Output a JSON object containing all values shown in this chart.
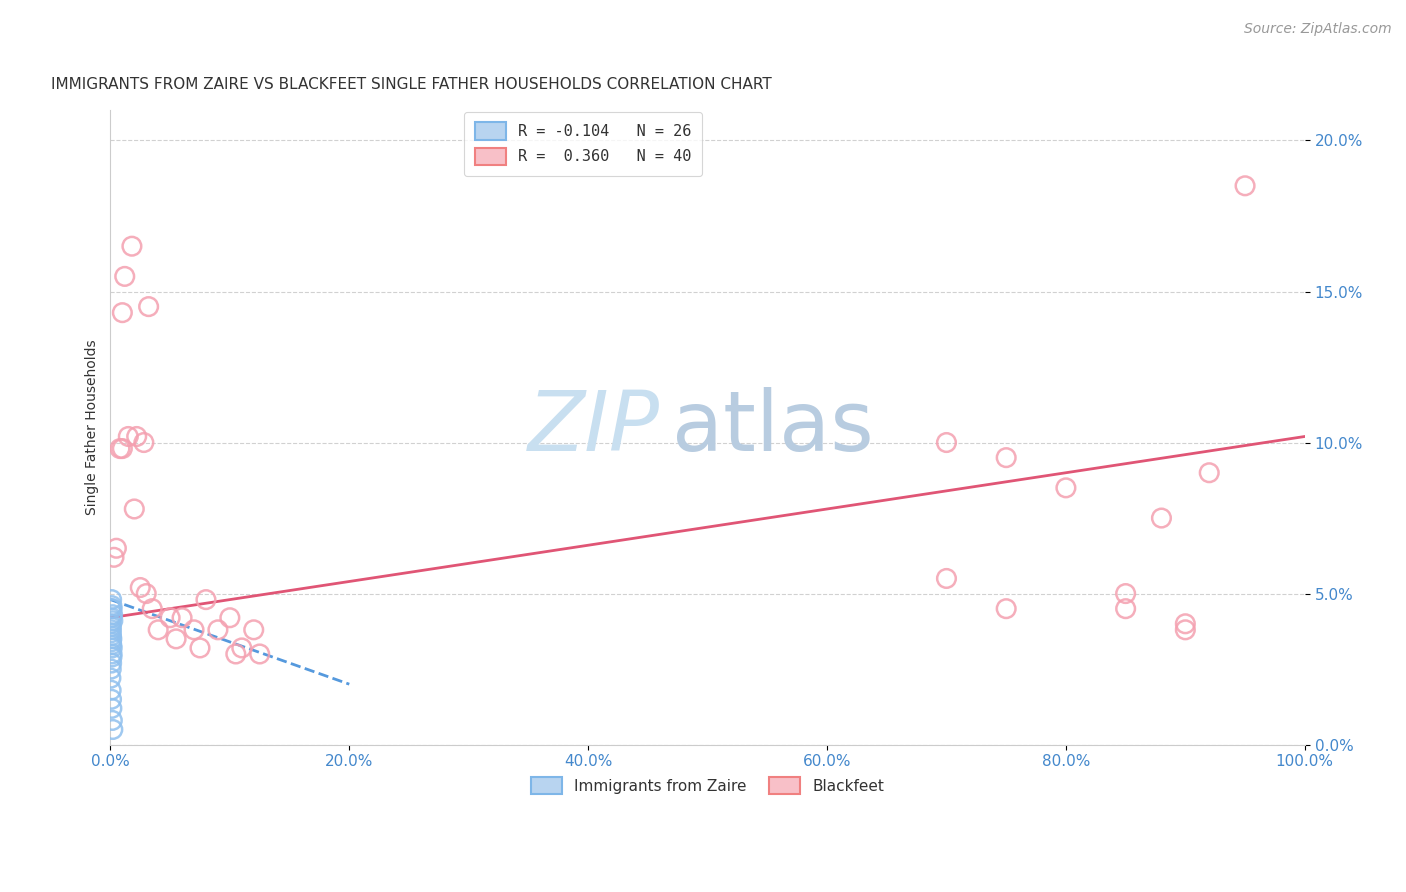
{
  "title": "IMMIGRANTS FROM ZAIRE VS BLACKFEET SINGLE FATHER HOUSEHOLDS CORRELATION CHART",
  "source": "Source: ZipAtlas.com",
  "xlabel": "",
  "ylabel": "Single Father Households",
  "watermark_zip": "ZIP",
  "watermark_atlas": "atlas",
  "xlim": [
    0.0,
    100.0
  ],
  "ylim": [
    0.0,
    21.0
  ],
  "xticks": [
    0.0,
    20.0,
    40.0,
    60.0,
    80.0,
    100.0
  ],
  "yticks": [
    0.0,
    5.0,
    10.0,
    15.0,
    20.0
  ],
  "legend": [
    {
      "label": "R = -0.104   N = 26",
      "color": "#7eb6e8"
    },
    {
      "label": "R =  0.360   N = 40",
      "color": "#f08080"
    }
  ],
  "blue_points": [
    [
      0.05,
      4.5
    ],
    [
      0.1,
      4.8
    ],
    [
      0.12,
      4.6
    ],
    [
      0.15,
      4.5
    ],
    [
      0.18,
      4.3
    ],
    [
      0.2,
      4.1
    ],
    [
      0.08,
      3.8
    ],
    [
      0.12,
      3.5
    ],
    [
      0.15,
      3.2
    ],
    [
      0.05,
      4.0
    ],
    [
      0.07,
      3.9
    ],
    [
      0.1,
      4.2
    ],
    [
      0.09,
      3.6
    ],
    [
      0.11,
      3.3
    ],
    [
      0.14,
      3.0
    ],
    [
      0.06,
      3.7
    ],
    [
      0.08,
      3.4
    ],
    [
      0.13,
      2.9
    ],
    [
      0.1,
      2.7
    ],
    [
      0.07,
      2.5
    ],
    [
      0.04,
      2.2
    ],
    [
      0.06,
      1.8
    ],
    [
      0.09,
      1.5
    ],
    [
      0.12,
      1.2
    ],
    [
      0.16,
      0.8
    ],
    [
      0.2,
      0.5
    ]
  ],
  "pink_points": [
    [
      0.5,
      6.5
    ],
    [
      1.0,
      9.8
    ],
    [
      1.5,
      10.2
    ],
    [
      2.0,
      7.8
    ],
    [
      2.5,
      5.2
    ],
    [
      3.0,
      5.0
    ],
    [
      3.5,
      4.5
    ],
    [
      4.0,
      3.8
    ],
    [
      5.0,
      4.2
    ],
    [
      5.5,
      3.5
    ],
    [
      6.0,
      4.2
    ],
    [
      7.0,
      3.8
    ],
    [
      7.5,
      3.2
    ],
    [
      8.0,
      4.8
    ],
    [
      9.0,
      3.8
    ],
    [
      10.0,
      4.2
    ],
    [
      10.5,
      3.0
    ],
    [
      11.0,
      3.2
    ],
    [
      12.0,
      3.8
    ],
    [
      12.5,
      3.0
    ],
    [
      1.2,
      15.5
    ],
    [
      1.8,
      16.5
    ],
    [
      3.2,
      14.5
    ],
    [
      1.0,
      14.3
    ],
    [
      2.2,
      10.2
    ],
    [
      2.8,
      10.0
    ],
    [
      0.8,
      9.8
    ],
    [
      70.0,
      10.0
    ],
    [
      75.0,
      9.5
    ],
    [
      80.0,
      8.5
    ],
    [
      85.0,
      4.5
    ],
    [
      88.0,
      7.5
    ],
    [
      90.0,
      3.8
    ],
    [
      92.0,
      9.0
    ],
    [
      95.0,
      18.5
    ],
    [
      70.0,
      5.5
    ],
    [
      75.0,
      4.5
    ],
    [
      85.0,
      5.0
    ],
    [
      90.0,
      4.0
    ],
    [
      0.3,
      6.2
    ]
  ],
  "blue_line_x": [
    0.0,
    20.0
  ],
  "blue_line_y": [
    4.8,
    2.0
  ],
  "pink_line_x": [
    0.0,
    100.0
  ],
  "pink_line_y": [
    4.2,
    10.2
  ],
  "blue_color": "#90c0ee",
  "pink_color": "#f4a0b0",
  "blue_line_color": "#5599dd",
  "pink_line_color": "#e05575",
  "background_color": "#ffffff",
  "title_fontsize": 11,
  "axis_label_fontsize": 10,
  "tick_fontsize": 11,
  "legend_fontsize": 11,
  "watermark_zip_fontsize": 60,
  "watermark_atlas_fontsize": 60,
  "watermark_color": "#c8dff0",
  "watermark_atlas_color": "#b8cce0",
  "source_fontsize": 10,
  "source_color": "#999999"
}
